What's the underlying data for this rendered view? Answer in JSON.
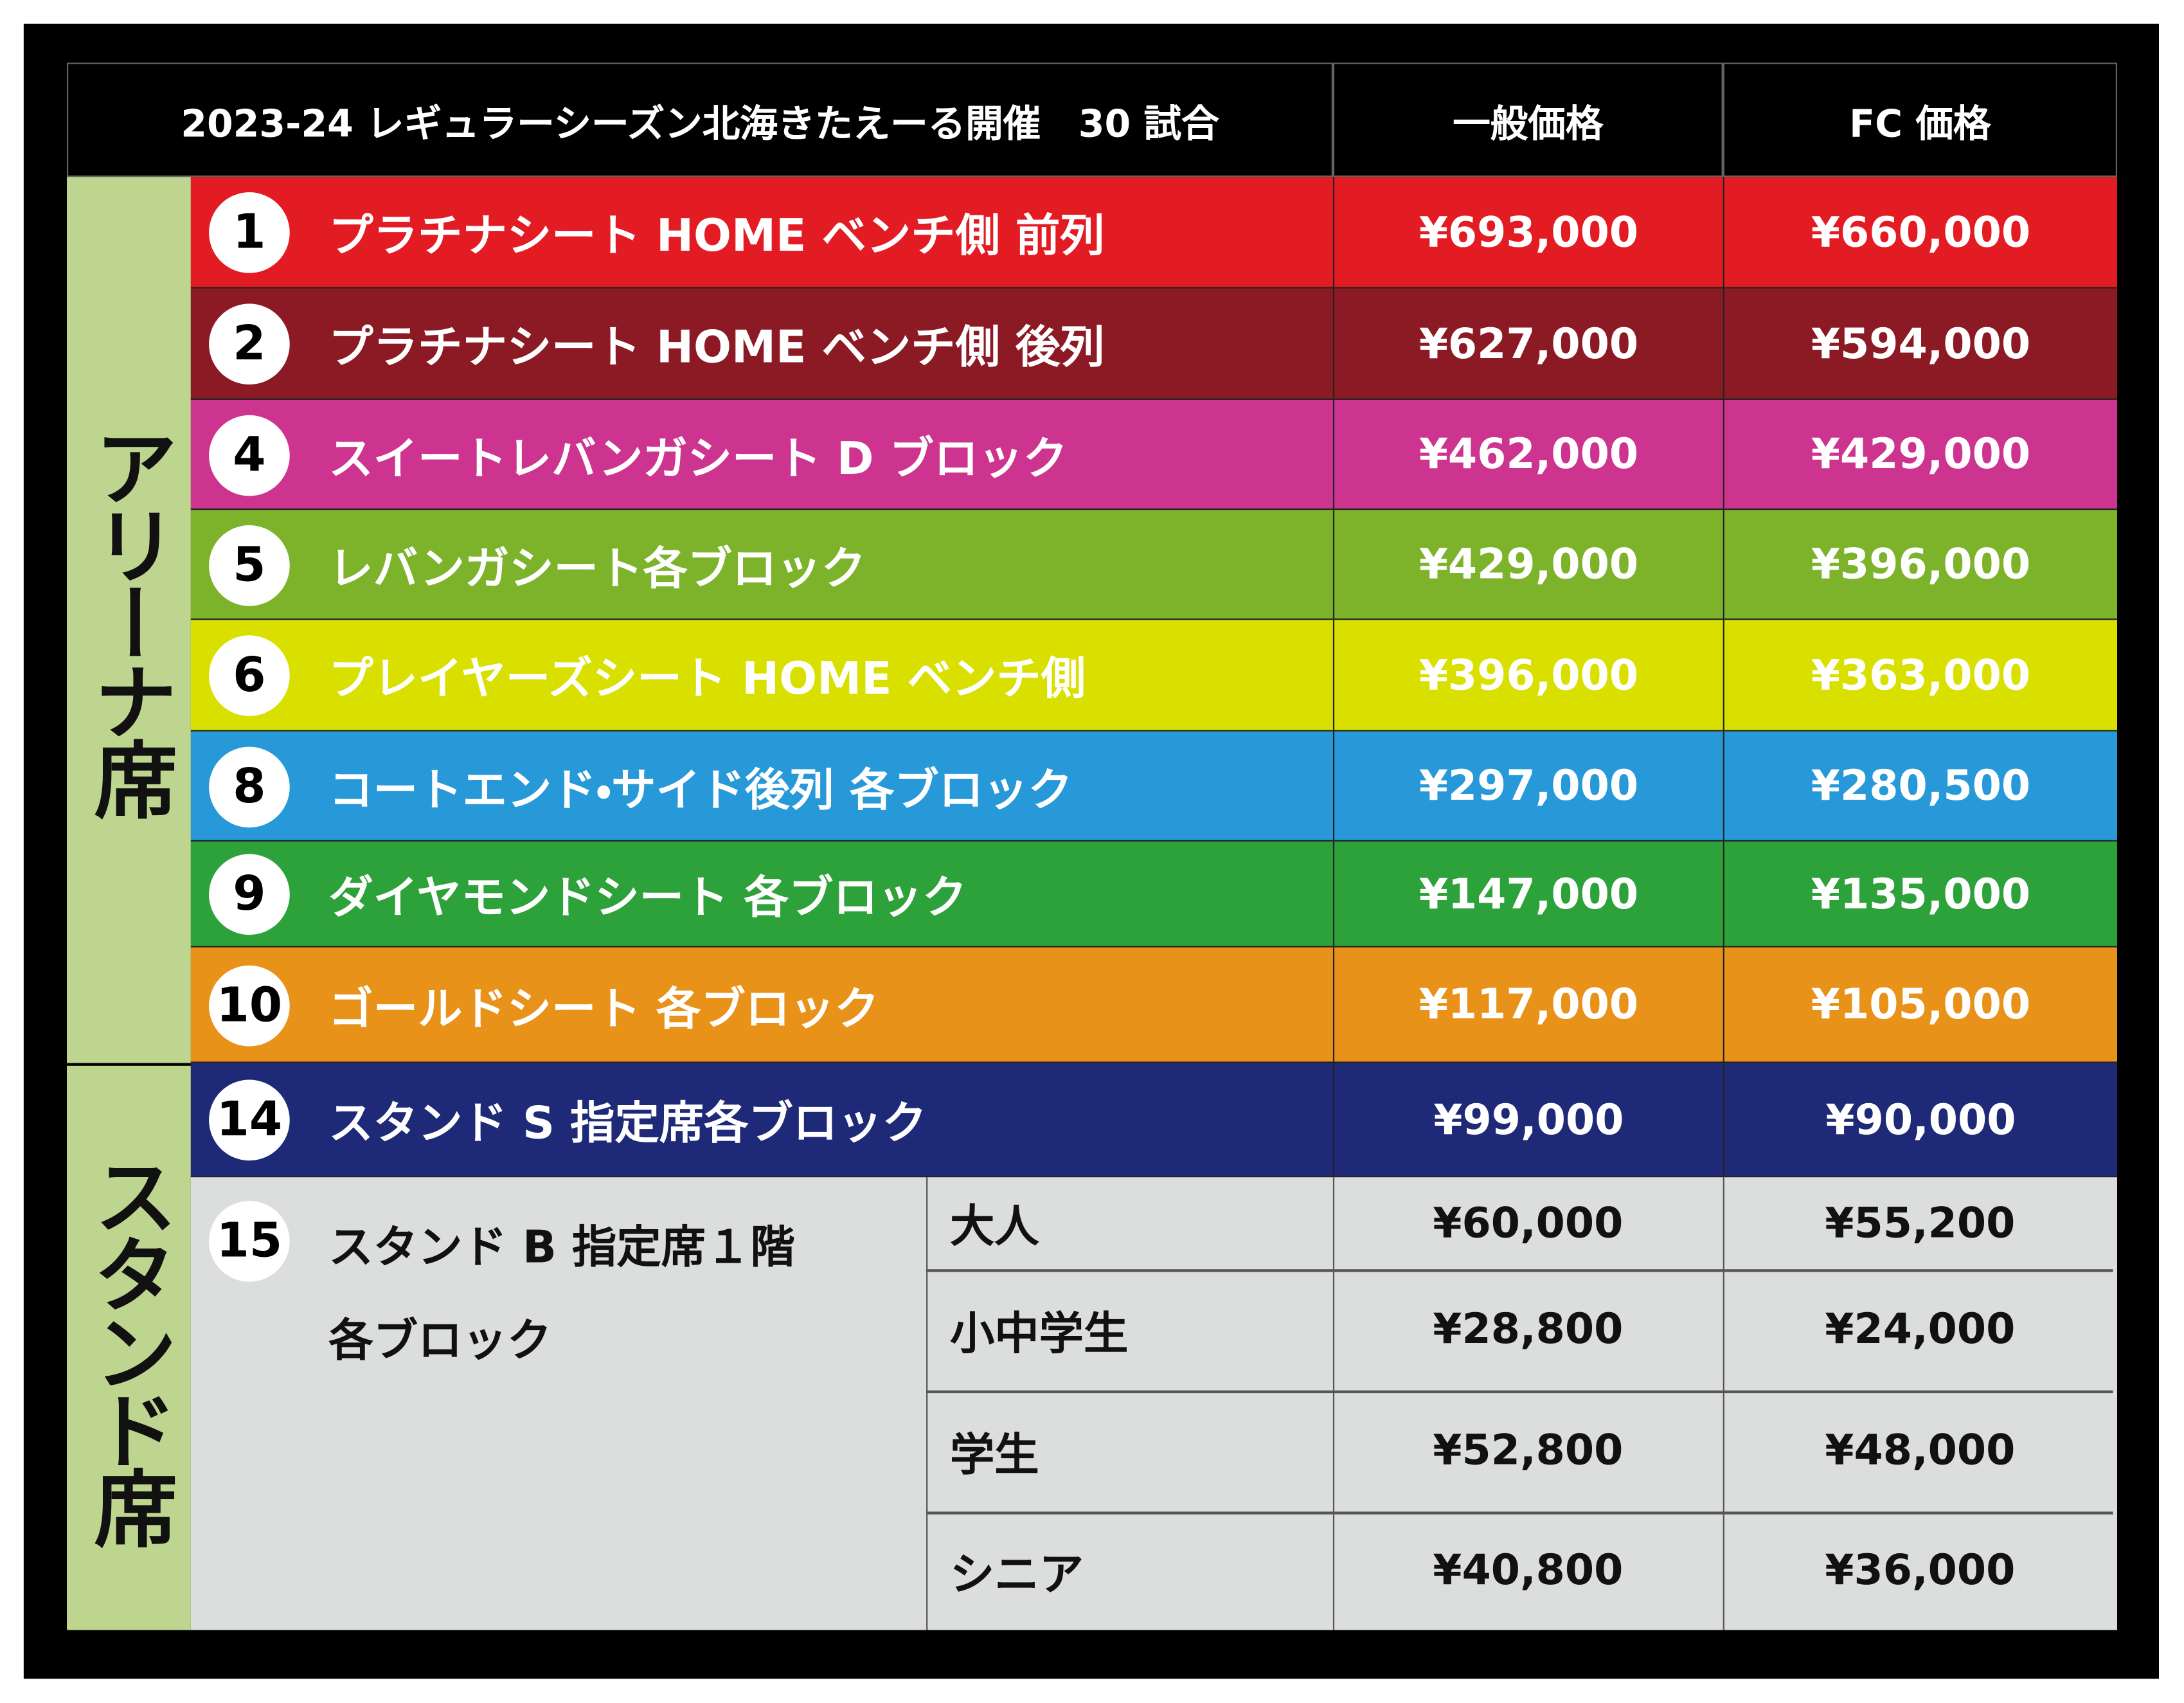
{
  "header": {
    "title": "2023-24 レギュラーシーズン北海きたえーる開催　30 試合",
    "general": "一般価格",
    "fc": "FC 価格"
  },
  "sections": [
    {
      "label": "アリーナ席"
    },
    {
      "label": "スタンド席"
    }
  ],
  "rows": [
    {
      "number": "1",
      "name": "プラチナシート HOME ベンチ側 前列",
      "general": "¥693,000",
      "fc": "¥660,000"
    },
    {
      "number": "2",
      "name": "プラチナシート HOME ベンチ側 後列",
      "general": "¥627,000",
      "fc": "¥594,000"
    },
    {
      "number": "4",
      "name": "スイートレバンガシート D ブロック",
      "general": "¥462,000",
      "fc": "¥429,000"
    },
    {
      "number": "5",
      "name": "レバンガシート各ブロック",
      "general": "¥429,000",
      "fc": "¥396,000"
    },
    {
      "number": "6",
      "name": "プレイヤーズシート HOME ベンチ側",
      "general": "¥396,000",
      "fc": "¥363,000"
    },
    {
      "number": "8",
      "name": "コートエンド・サイド後列 各ブロック",
      "general": "¥297,000",
      "fc": "¥280,500"
    },
    {
      "number": "9",
      "name": "ダイヤモンドシート 各ブロック",
      "general": "¥147,000",
      "fc": "¥135,000"
    },
    {
      "number": "10",
      "name": "ゴールドシート 各ブロック",
      "general": "¥117,000",
      "fc": "¥105,000"
    },
    {
      "number": "14",
      "name": "スタンド S 指定席各ブロック",
      "general": "¥99,000",
      "fc": "¥90,000"
    }
  ],
  "stand_b": {
    "number": "15",
    "name": "スタンド B 指定席１階",
    "name2": "各ブロック",
    "tiers": [
      {
        "label": "大人",
        "general": "¥60,000",
        "fc": "¥55,200"
      },
      {
        "label": "小中学生",
        "general": "¥28,800",
        "fc": "¥24,000"
      },
      {
        "label": "学生",
        "general": "¥52,800",
        "fc": "¥48,000"
      },
      {
        "label": "シニア",
        "general": "¥40,800",
        "fc": "¥36,000"
      }
    ]
  }
}
